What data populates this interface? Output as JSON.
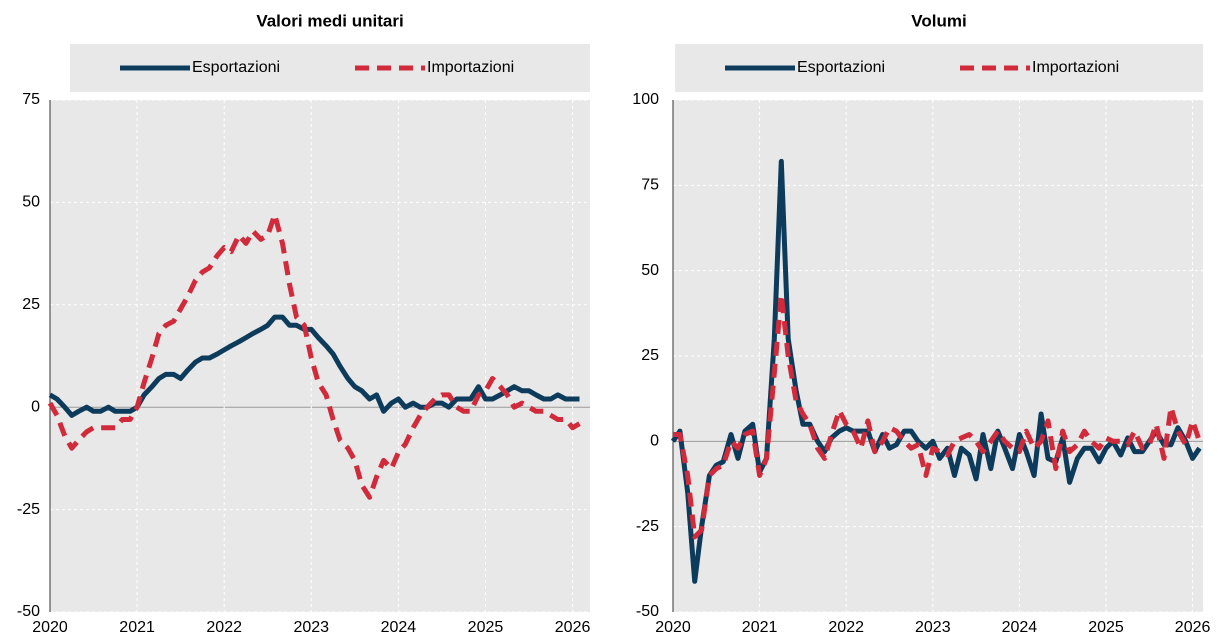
{
  "chart_data": [
    {
      "type": "line",
      "title": "Valori medi unitari",
      "x": [
        2020.0,
        2020.08,
        2020.17,
        2020.25,
        2020.33,
        2020.42,
        2020.5,
        2020.58,
        2020.67,
        2020.75,
        2020.83,
        2020.92,
        2021.0,
        2021.08,
        2021.17,
        2021.25,
        2021.33,
        2021.42,
        2021.5,
        2021.58,
        2021.67,
        2021.75,
        2021.83,
        2021.92,
        2022.0,
        2022.08,
        2022.17,
        2022.25,
        2022.33,
        2022.42,
        2022.5,
        2022.58,
        2022.67,
        2022.75,
        2022.83,
        2022.92,
        2023.0,
        2023.08,
        2023.17,
        2023.25,
        2023.33,
        2023.42,
        2023.5,
        2023.58,
        2023.67,
        2023.75,
        2023.83,
        2023.92,
        2024.0,
        2024.08,
        2024.17,
        2024.25,
        2024.33,
        2024.42,
        2024.5,
        2024.58,
        2024.67,
        2024.75,
        2024.83,
        2024.92,
        2025.0,
        2025.08,
        2025.17,
        2025.25,
        2025.33,
        2025.42,
        2025.5,
        2025.58,
        2025.67,
        2025.75,
        2025.83,
        2025.92,
        2026.0,
        2026.08
      ],
      "series": [
        {
          "name": "Esportazioni",
          "color": "#0d3b5c",
          "dashed": false,
          "values": [
            3,
            2,
            0,
            -2,
            -1,
            0,
            -1,
            -1,
            0,
            -1,
            -1,
            -1,
            0,
            3,
            5,
            7,
            8,
            8,
            7,
            9,
            11,
            12,
            12,
            13,
            14,
            15,
            16,
            17,
            18,
            19,
            20,
            22,
            22,
            20,
            20,
            19,
            19,
            17,
            15,
            13,
            10,
            7,
            5,
            4,
            2,
            3,
            -1,
            1,
            2,
            0,
            1,
            0,
            0,
            1,
            1,
            0,
            2,
            2,
            2,
            5,
            2,
            2,
            3,
            4,
            5,
            4,
            4,
            3,
            2,
            2,
            3,
            2,
            2,
            2
          ]
        },
        {
          "name": "Importazioni",
          "color": "#d12a3a",
          "dashed": true,
          "values": [
            1,
            -2,
            -7,
            -10,
            -8,
            -6,
            -5,
            -5,
            -5,
            -5,
            -3,
            -3,
            0,
            6,
            12,
            18,
            20,
            21,
            24,
            27,
            31,
            33,
            34,
            37,
            39,
            38,
            42,
            40,
            43,
            41,
            42,
            47,
            40,
            30,
            22,
            20,
            12,
            6,
            3,
            -3,
            -8,
            -10,
            -13,
            -19,
            -22,
            -17,
            -13,
            -15,
            -11,
            -9,
            -5,
            -2,
            0,
            2,
            3,
            3,
            0,
            -1,
            -1,
            3,
            4,
            7,
            5,
            3,
            0,
            1,
            0,
            -1,
            -1,
            -2,
            -3,
            -3,
            -5,
            -4
          ]
        }
      ],
      "xlim": [
        2020,
        2026.2
      ],
      "xticks": [
        2020,
        2021,
        2022,
        2023,
        2024,
        2025,
        2026
      ],
      "ylim": [
        -50,
        75
      ],
      "yticks": [
        -50,
        -25,
        0,
        25,
        50,
        75
      ],
      "grid": true
    },
    {
      "type": "line",
      "title": "Volumi",
      "x": [
        2020.0,
        2020.08,
        2020.17,
        2020.25,
        2020.33,
        2020.42,
        2020.5,
        2020.58,
        2020.67,
        2020.75,
        2020.83,
        2020.92,
        2021.0,
        2021.08,
        2021.17,
        2021.25,
        2021.33,
        2021.42,
        2021.5,
        2021.58,
        2021.67,
        2021.75,
        2021.83,
        2021.92,
        2022.0,
        2022.08,
        2022.17,
        2022.25,
        2022.33,
        2022.42,
        2022.5,
        2022.58,
        2022.67,
        2022.75,
        2022.83,
        2022.92,
        2023.0,
        2023.08,
        2023.17,
        2023.25,
        2023.33,
        2023.42,
        2023.5,
        2023.58,
        2023.67,
        2023.75,
        2023.83,
        2023.92,
        2024.0,
        2024.08,
        2024.17,
        2024.25,
        2024.33,
        2024.42,
        2024.5,
        2024.58,
        2024.67,
        2024.75,
        2024.83,
        2024.92,
        2025.0,
        2025.08,
        2025.17,
        2025.25,
        2025.33,
        2025.42,
        2025.5,
        2025.58,
        2025.67,
        2025.75,
        2025.83,
        2025.92,
        2026.0,
        2026.08
      ],
      "series": [
        {
          "name": "Esportazioni",
          "color": "#0d3b5c",
          "dashed": false,
          "values": [
            0,
            3,
            -15,
            -41,
            -25,
            -10,
            -7,
            -6,
            2,
            -5,
            3,
            5,
            -9,
            -5,
            30,
            82,
            30,
            15,
            5,
            5,
            0,
            -3,
            1,
            3,
            4,
            3,
            3,
            3,
            -3,
            2,
            -2,
            -1,
            3,
            3,
            0,
            -2,
            0,
            -5,
            -2,
            -10,
            -2,
            -4,
            -11,
            2,
            -8,
            3,
            -2,
            -8,
            2,
            -3,
            -10,
            8,
            -5,
            -6,
            1,
            -12,
            -5,
            -2,
            -2,
            -6,
            -2,
            0,
            -4,
            1,
            -3,
            -3,
            0,
            3,
            -1,
            -1,
            4,
            0,
            -5,
            -2
          ]
        },
        {
          "name": "Importazioni",
          "color": "#d12a3a",
          "dashed": true,
          "values": [
            2,
            2,
            -10,
            -28,
            -26,
            -10,
            -8,
            -7,
            0,
            -2,
            2,
            3,
            -10,
            -5,
            20,
            43,
            25,
            12,
            8,
            5,
            -2,
            -5,
            2,
            9,
            5,
            3,
            -2,
            6,
            -3,
            0,
            4,
            3,
            0,
            -2,
            -1,
            -10,
            -2,
            -3,
            -4,
            0,
            1,
            2,
            0,
            -3,
            0,
            3,
            0,
            -2,
            -3,
            3,
            -2,
            0,
            6,
            -8,
            3,
            -3,
            -1,
            3,
            0,
            -2,
            1,
            0,
            0,
            -1,
            3,
            -2,
            -1,
            5,
            -5,
            10,
            3,
            -1,
            6,
            0
          ]
        }
      ],
      "xlim": [
        2020,
        2026.12
      ],
      "xticks": [
        2020,
        2021,
        2022,
        2023,
        2024,
        2025,
        2026
      ],
      "ylim": [
        -50,
        100
      ],
      "yticks": [
        -50,
        -25,
        0,
        25,
        50,
        75,
        100
      ],
      "grid": true
    }
  ]
}
